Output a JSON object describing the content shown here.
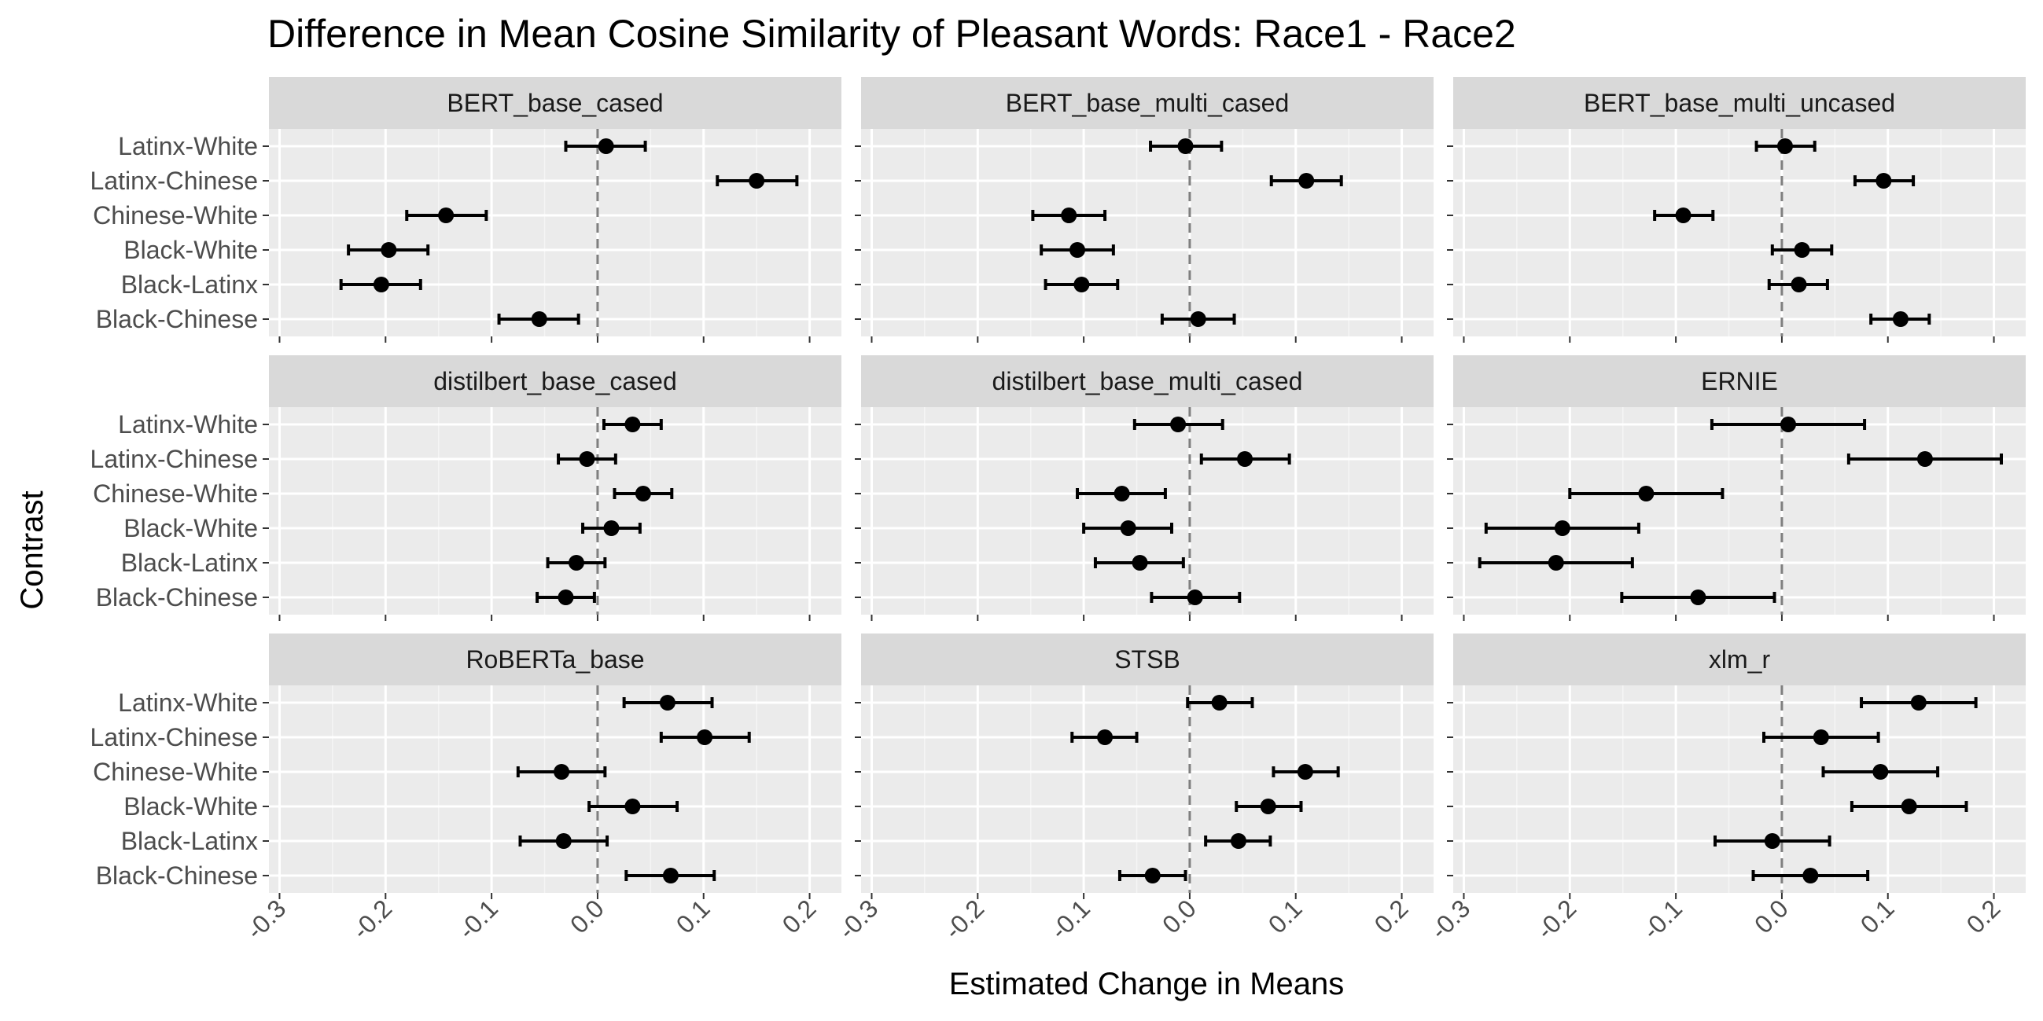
{
  "chart_data": {
    "type": "forest",
    "title": "Difference in Mean Cosine Similarity of Pleasant Words: Race1 - Race2",
    "xlabel": "Estimated Change in Means",
    "ylabel": "Contrast",
    "xlim": [
      -0.31,
      0.23
    ],
    "xticks": [
      -0.3,
      -0.2,
      -0.1,
      0.0,
      0.1,
      0.2
    ],
    "xtick_labels": [
      "-0.3",
      "-0.2",
      "-0.1",
      "0.0",
      "0.1",
      "0.2"
    ],
    "reference_line": 0.0,
    "categories": [
      "Latinx-White",
      "Latinx-Chinese",
      "Chinese-White",
      "Black-White",
      "Black-Latinx",
      "Black-Chinese"
    ],
    "grid": true,
    "panels": [
      {
        "name": "BERT_base_cased",
        "points": [
          {
            "contrast": "Latinx-White",
            "estimate": 0.008,
            "lower": -0.03,
            "upper": 0.045
          },
          {
            "contrast": "Latinx-Chinese",
            "estimate": 0.15,
            "lower": 0.113,
            "upper": 0.188
          },
          {
            "contrast": "Chinese-White",
            "estimate": -0.143,
            "lower": -0.18,
            "upper": -0.105
          },
          {
            "contrast": "Black-White",
            "estimate": -0.197,
            "lower": -0.235,
            "upper": -0.16
          },
          {
            "contrast": "Black-Latinx",
            "estimate": -0.204,
            "lower": -0.242,
            "upper": -0.167
          },
          {
            "contrast": "Black-Chinese",
            "estimate": -0.055,
            "lower": -0.093,
            "upper": -0.018
          }
        ]
      },
      {
        "name": "BERT_base_multi_cased",
        "points": [
          {
            "contrast": "Latinx-White",
            "estimate": -0.004,
            "lower": -0.037,
            "upper": 0.03
          },
          {
            "contrast": "Latinx-Chinese",
            "estimate": 0.11,
            "lower": 0.077,
            "upper": 0.143
          },
          {
            "contrast": "Chinese-White",
            "estimate": -0.114,
            "lower": -0.148,
            "upper": -0.08
          },
          {
            "contrast": "Black-White",
            "estimate": -0.106,
            "lower": -0.14,
            "upper": -0.072
          },
          {
            "contrast": "Black-Latinx",
            "estimate": -0.102,
            "lower": -0.136,
            "upper": -0.068
          },
          {
            "contrast": "Black-Chinese",
            "estimate": 0.008,
            "lower": -0.026,
            "upper": 0.042
          }
        ]
      },
      {
        "name": "BERT_base_multi_uncased",
        "points": [
          {
            "contrast": "Latinx-White",
            "estimate": 0.003,
            "lower": -0.024,
            "upper": 0.031
          },
          {
            "contrast": "Latinx-Chinese",
            "estimate": 0.096,
            "lower": 0.069,
            "upper": 0.124
          },
          {
            "contrast": "Chinese-White",
            "estimate": -0.093,
            "lower": -0.12,
            "upper": -0.065
          },
          {
            "contrast": "Black-White",
            "estimate": 0.019,
            "lower": -0.009,
            "upper": 0.047
          },
          {
            "contrast": "Black-Latinx",
            "estimate": 0.016,
            "lower": -0.012,
            "upper": 0.043
          },
          {
            "contrast": "Black-Chinese",
            "estimate": 0.112,
            "lower": 0.084,
            "upper": 0.139
          }
        ]
      },
      {
        "name": "distilbert_base_cased",
        "points": [
          {
            "contrast": "Latinx-White",
            "estimate": 0.033,
            "lower": 0.006,
            "upper": 0.06
          },
          {
            "contrast": "Latinx-Chinese",
            "estimate": -0.01,
            "lower": -0.037,
            "upper": 0.017
          },
          {
            "contrast": "Chinese-White",
            "estimate": 0.043,
            "lower": 0.016,
            "upper": 0.07
          },
          {
            "contrast": "Black-White",
            "estimate": 0.013,
            "lower": -0.014,
            "upper": 0.04
          },
          {
            "contrast": "Black-Latinx",
            "estimate": -0.02,
            "lower": -0.047,
            "upper": 0.007
          },
          {
            "contrast": "Black-Chinese",
            "estimate": -0.03,
            "lower": -0.057,
            "upper": -0.003
          }
        ]
      },
      {
        "name": "distilbert_base_multi_cased",
        "points": [
          {
            "contrast": "Latinx-White",
            "estimate": -0.011,
            "lower": -0.052,
            "upper": 0.031
          },
          {
            "contrast": "Latinx-Chinese",
            "estimate": 0.052,
            "lower": 0.011,
            "upper": 0.094
          },
          {
            "contrast": "Chinese-White",
            "estimate": -0.064,
            "lower": -0.106,
            "upper": -0.023
          },
          {
            "contrast": "Black-White",
            "estimate": -0.058,
            "lower": -0.1,
            "upper": -0.017
          },
          {
            "contrast": "Black-Latinx",
            "estimate": -0.047,
            "lower": -0.089,
            "upper": -0.006
          },
          {
            "contrast": "Black-Chinese",
            "estimate": 0.005,
            "lower": -0.036,
            "upper": 0.047
          }
        ]
      },
      {
        "name": "ERNIE",
        "points": [
          {
            "contrast": "Latinx-White",
            "estimate": 0.006,
            "lower": -0.066,
            "upper": 0.078
          },
          {
            "contrast": "Latinx-Chinese",
            "estimate": 0.135,
            "lower": 0.063,
            "upper": 0.207
          },
          {
            "contrast": "Chinese-White",
            "estimate": -0.128,
            "lower": -0.2,
            "upper": -0.056
          },
          {
            "contrast": "Black-White",
            "estimate": -0.207,
            "lower": -0.279,
            "upper": -0.135
          },
          {
            "contrast": "Black-Latinx",
            "estimate": -0.213,
            "lower": -0.285,
            "upper": -0.141
          },
          {
            "contrast": "Black-Chinese",
            "estimate": -0.079,
            "lower": -0.151,
            "upper": -0.007
          }
        ]
      },
      {
        "name": "RoBERTa_base",
        "points": [
          {
            "contrast": "Latinx-White",
            "estimate": 0.066,
            "lower": 0.025,
            "upper": 0.108
          },
          {
            "contrast": "Latinx-Chinese",
            "estimate": 0.101,
            "lower": 0.06,
            "upper": 0.143
          },
          {
            "contrast": "Chinese-White",
            "estimate": -0.034,
            "lower": -0.075,
            "upper": 0.007
          },
          {
            "contrast": "Black-White",
            "estimate": 0.033,
            "lower": -0.008,
            "upper": 0.075
          },
          {
            "contrast": "Black-Latinx",
            "estimate": -0.032,
            "lower": -0.073,
            "upper": 0.009
          },
          {
            "contrast": "Black-Chinese",
            "estimate": 0.069,
            "lower": 0.027,
            "upper": 0.11
          }
        ]
      },
      {
        "name": "STSB",
        "points": [
          {
            "contrast": "Latinx-White",
            "estimate": 0.028,
            "lower": -0.002,
            "upper": 0.059
          },
          {
            "contrast": "Latinx-Chinese",
            "estimate": -0.08,
            "lower": -0.111,
            "upper": -0.05
          },
          {
            "contrast": "Chinese-White",
            "estimate": 0.109,
            "lower": 0.079,
            "upper": 0.14
          },
          {
            "contrast": "Black-White",
            "estimate": 0.074,
            "lower": 0.044,
            "upper": 0.105
          },
          {
            "contrast": "Black-Latinx",
            "estimate": 0.046,
            "lower": 0.015,
            "upper": 0.076
          },
          {
            "contrast": "Black-Chinese",
            "estimate": -0.035,
            "lower": -0.066,
            "upper": -0.004
          }
        ]
      },
      {
        "name": "xlm_r",
        "points": [
          {
            "contrast": "Latinx-White",
            "estimate": 0.129,
            "lower": 0.075,
            "upper": 0.183
          },
          {
            "contrast": "Latinx-Chinese",
            "estimate": 0.037,
            "lower": -0.017,
            "upper": 0.091
          },
          {
            "contrast": "Chinese-White",
            "estimate": 0.093,
            "lower": 0.039,
            "upper": 0.147
          },
          {
            "contrast": "Black-White",
            "estimate": 0.12,
            "lower": 0.066,
            "upper": 0.174
          },
          {
            "contrast": "Black-Latinx",
            "estimate": -0.009,
            "lower": -0.063,
            "upper": 0.045
          },
          {
            "contrast": "Black-Chinese",
            "estimate": 0.027,
            "lower": -0.027,
            "upper": 0.081
          }
        ]
      }
    ],
    "colors": {
      "panel_background": "#ebebeb",
      "strip_background": "#d9d9d9",
      "grid_major": "#ffffff",
      "grid_minor": "#f5f5f5",
      "point": "#000000",
      "reference_line": "#7f7f7f",
      "tick_label": "#4d4d4d"
    }
  }
}
